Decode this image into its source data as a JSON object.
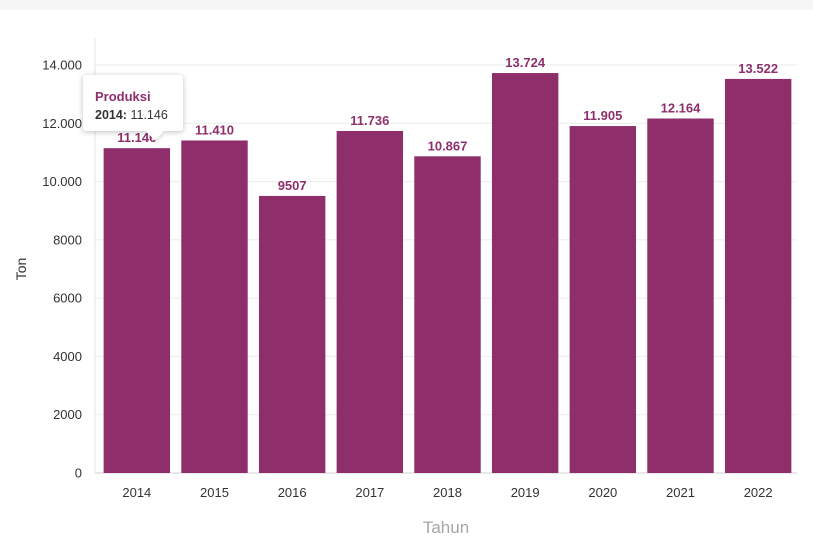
{
  "chart_data": {
    "type": "bar",
    "categories": [
      "2014",
      "2015",
      "2016",
      "2017",
      "2018",
      "2019",
      "2020",
      "2021",
      "2022"
    ],
    "series": [
      {
        "name": "Produksi",
        "values": [
          11146,
          11410,
          9507,
          11736,
          10867,
          13724,
          11905,
          12164,
          13522
        ]
      }
    ],
    "value_labels": [
      "11.146",
      "11.410",
      "9507",
      "11.736",
      "10.867",
      "13.724",
      "11.905",
      "12.164",
      "13.522"
    ],
    "xlabel": "Tahun",
    "ylabel": "Ton",
    "ylim": [
      0,
      14000
    ],
    "yticks": [
      0,
      2000,
      4000,
      6000,
      8000,
      10000,
      12000,
      14000
    ],
    "ytick_labels": [
      "0",
      "2000",
      "4000",
      "6000",
      "8000",
      "10.000",
      "12.000",
      "14.000"
    ],
    "grid": true,
    "bar_color": "#8e2f6c"
  },
  "tooltip": {
    "series_name": "Produksi",
    "category": "2014:",
    "value": "11.146"
  }
}
